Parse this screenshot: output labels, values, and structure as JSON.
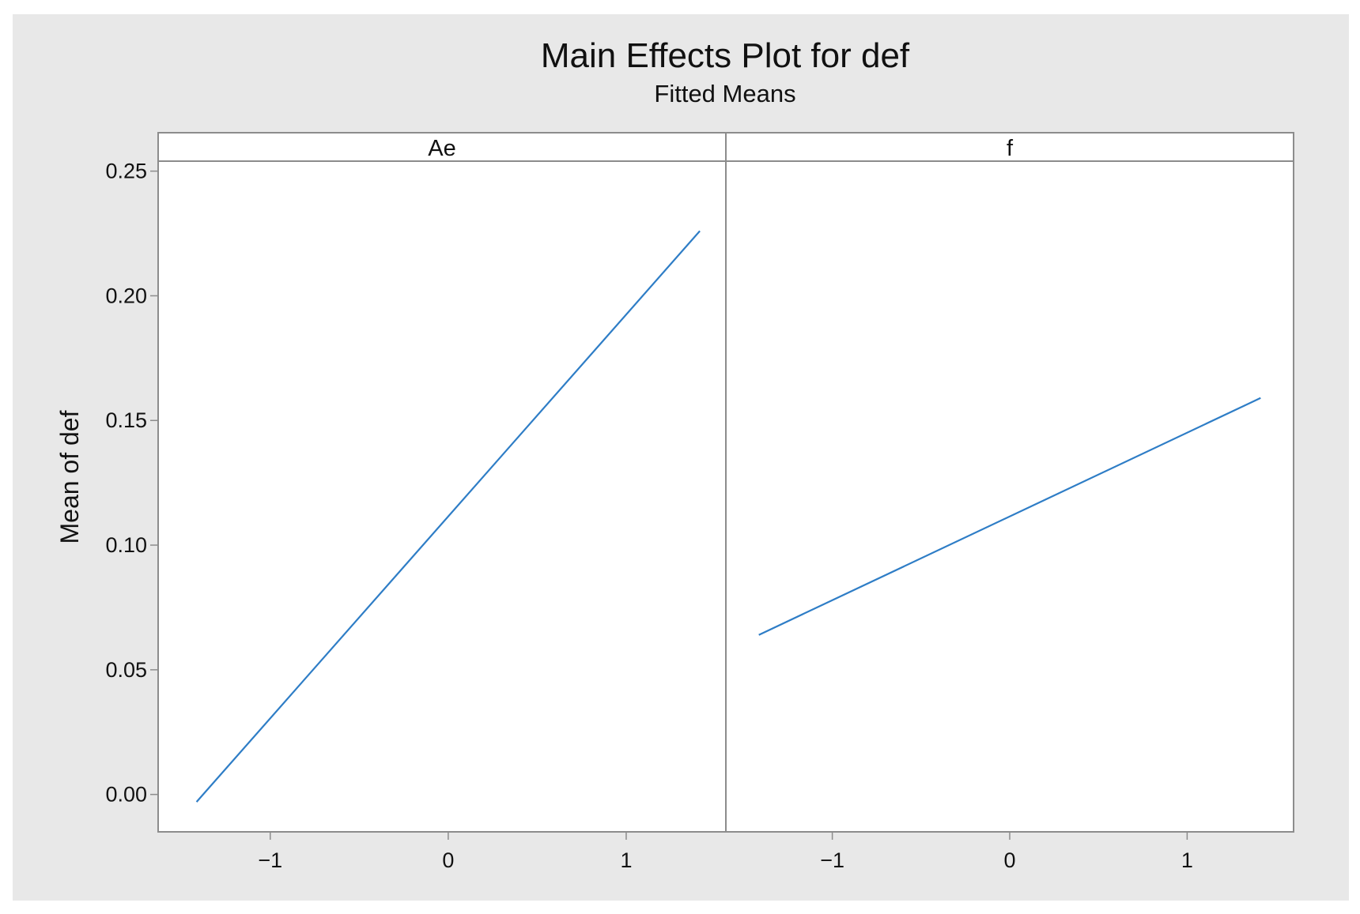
{
  "chart_data": {
    "type": "line",
    "title": "Main Effects Plot for def",
    "subtitle": "Fitted Means",
    "ylabel": "Mean of def",
    "xlabel": "",
    "ylim": [
      -0.015,
      0.254
    ],
    "y_ticks": [
      0.0,
      0.05,
      0.1,
      0.15,
      0.2,
      0.25
    ],
    "y_tick_labels": [
      "0.00",
      "0.05",
      "0.10",
      "0.15",
      "0.20",
      "0.25"
    ],
    "grid": false,
    "line_color": "#2e7dc6",
    "panels": [
      {
        "name": "Ae",
        "xlim": [
          -1.63,
          1.56
        ],
        "x_ticks": [
          -1,
          0,
          1
        ],
        "x_tick_labels": [
          "−1",
          "0",
          "1"
        ],
        "x": [
          -1.414,
          1.414
        ],
        "y": [
          -0.003,
          0.226
        ]
      },
      {
        "name": "f",
        "xlim": [
          -1.6,
          1.6
        ],
        "x_ticks": [
          -1,
          0,
          1
        ],
        "x_tick_labels": [
          "−1",
          "0",
          "1"
        ],
        "x": [
          -1.414,
          1.414
        ],
        "y": [
          0.064,
          0.159
        ]
      }
    ]
  }
}
